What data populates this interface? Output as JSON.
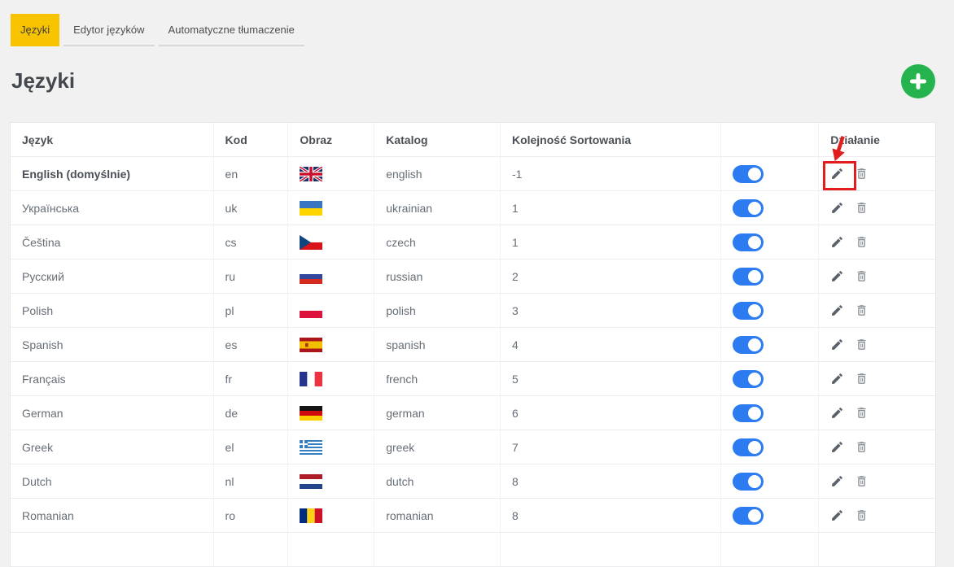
{
  "tabs": [
    {
      "label": "Języki",
      "active": true
    },
    {
      "label": "Edytor języków",
      "active": false
    },
    {
      "label": "Automatyczne tłumaczenie",
      "active": false
    }
  ],
  "page_title": "Języki",
  "add_button": {
    "icon": "plus-icon",
    "color": "#24b34c"
  },
  "table": {
    "headers": {
      "language": "Język",
      "code": "Kod",
      "image": "Obraz",
      "catalog": "Katalog",
      "sort": "Kolejność Sortowania",
      "status": "",
      "action": "Działanie"
    },
    "rows": [
      {
        "name": "English (domyślnie)",
        "default": true,
        "code": "en",
        "flag": "gb",
        "catalog": "english",
        "sort": "-1",
        "enabled": true,
        "edit_highlighted": true
      },
      {
        "name": "Українська",
        "default": false,
        "code": "uk",
        "flag": "ua",
        "catalog": "ukrainian",
        "sort": "1",
        "enabled": true,
        "edit_highlighted": false
      },
      {
        "name": "Čeština",
        "default": false,
        "code": "cs",
        "flag": "cz",
        "catalog": "czech",
        "sort": "1",
        "enabled": true,
        "edit_highlighted": false
      },
      {
        "name": "Русский",
        "default": false,
        "code": "ru",
        "flag": "ru",
        "catalog": "russian",
        "sort": "2",
        "enabled": true,
        "edit_highlighted": false
      },
      {
        "name": "Polish",
        "default": false,
        "code": "pl",
        "flag": "pl",
        "catalog": "polish",
        "sort": "3",
        "enabled": true,
        "edit_highlighted": false
      },
      {
        "name": "Spanish",
        "default": false,
        "code": "es",
        "flag": "es",
        "catalog": "spanish",
        "sort": "4",
        "enabled": true,
        "edit_highlighted": false
      },
      {
        "name": "Français",
        "default": false,
        "code": "fr",
        "flag": "fr",
        "catalog": "french",
        "sort": "5",
        "enabled": true,
        "edit_highlighted": false
      },
      {
        "name": "German",
        "default": false,
        "code": "de",
        "flag": "de",
        "catalog": "german",
        "sort": "6",
        "enabled": true,
        "edit_highlighted": false
      },
      {
        "name": "Greek",
        "default": false,
        "code": "el",
        "flag": "gr",
        "catalog": "greek",
        "sort": "7",
        "enabled": true,
        "edit_highlighted": false
      },
      {
        "name": "Dutch",
        "default": false,
        "code": "nl",
        "flag": "nl",
        "catalog": "dutch",
        "sort": "8",
        "enabled": true,
        "edit_highlighted": false
      },
      {
        "name": "Romanian",
        "default": false,
        "code": "ro",
        "flag": "ro",
        "catalog": "romanian",
        "sort": "8",
        "enabled": true,
        "edit_highlighted": false
      }
    ]
  },
  "colors": {
    "accent_yellow": "#f8c301",
    "toggle_blue": "#2d7bf0",
    "add_green": "#24b34c",
    "annotation_red": "#e11d1d"
  }
}
